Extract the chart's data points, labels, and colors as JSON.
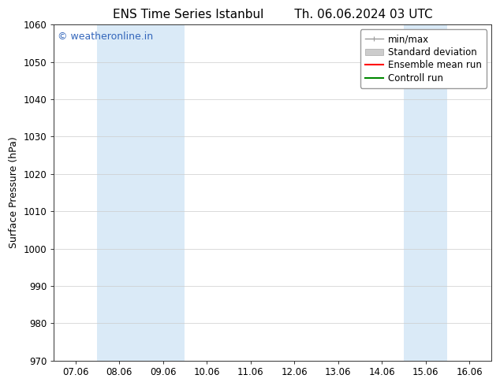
{
  "title_left": "ENS Time Series Istanbul",
  "title_right": "Th. 06.06.2024 03 UTC",
  "ylabel": "Surface Pressure (hPa)",
  "ylim": [
    970,
    1060
  ],
  "yticks": [
    970,
    980,
    990,
    1000,
    1010,
    1020,
    1030,
    1040,
    1050,
    1060
  ],
  "x_labels": [
    "07.06",
    "08.06",
    "09.06",
    "10.06",
    "11.06",
    "12.06",
    "13.06",
    "14.06",
    "15.06",
    "16.06"
  ],
  "x_positions": [
    0,
    1,
    2,
    3,
    4,
    5,
    6,
    7,
    8,
    9
  ],
  "xlim": [
    -0.5,
    9.5
  ],
  "shaded_regions": [
    {
      "x_start": 0.5,
      "x_end": 2.5,
      "color": "#daeaf7"
    },
    {
      "x_start": 7.5,
      "x_end": 8.5,
      "color": "#daeaf7"
    }
  ],
  "watermark": "© weatheronline.in",
  "watermark_color": "#3366bb",
  "background_color": "#ffffff",
  "plot_bg_color": "#ffffff",
  "legend_items": [
    {
      "label": "min/max",
      "color": "#999999",
      "lw": 1.0
    },
    {
      "label": "Standard deviation",
      "color": "#cccccc",
      "lw": 5
    },
    {
      "label": "Ensemble mean run",
      "color": "#ff0000",
      "lw": 1.5
    },
    {
      "label": "Controll run",
      "color": "#008800",
      "lw": 1.5
    }
  ],
  "title_fontsize": 11,
  "axis_label_fontsize": 9,
  "tick_fontsize": 8.5,
  "legend_fontsize": 8.5,
  "watermark_fontsize": 9
}
